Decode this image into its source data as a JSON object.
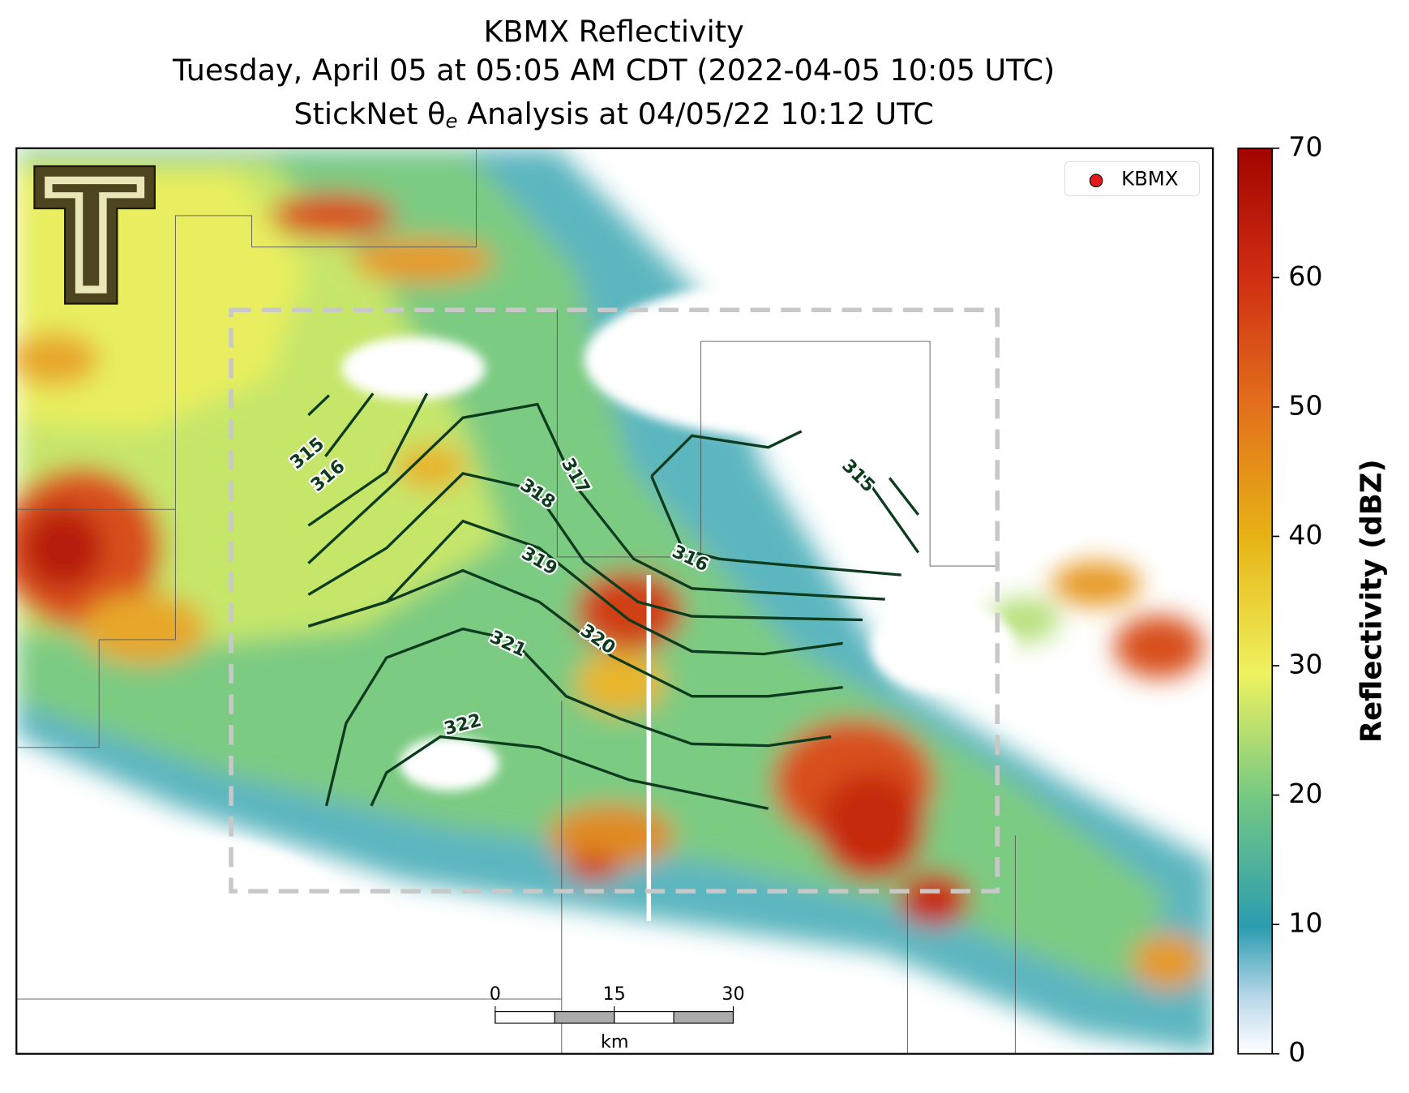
{
  "header": {
    "title": "KBMX Reflectivity",
    "subtitle": "Tuesday, April 05 at 05:05 AM CDT (2022-04-05 10:05 UTC)",
    "analysis": {
      "prefix": "StickNet θ",
      "subscript": "e",
      "suffix": " Analysis at 04/05/22 10:12 UTC"
    }
  },
  "legend": {
    "label": "KBMX",
    "color": "#e31a1c"
  },
  "contour_labels": [
    315,
    316,
    317,
    318,
    319,
    320,
    321,
    322,
    316,
    315
  ],
  "scale_bar": {
    "ticks": [
      0,
      15,
      30
    ],
    "unit": "km"
  },
  "colorbar": {
    "label": "Reflectivity (dBZ)",
    "range": [
      0,
      70
    ],
    "ticks": [
      0,
      10,
      20,
      30,
      40,
      50,
      60,
      70
    ]
  }
}
